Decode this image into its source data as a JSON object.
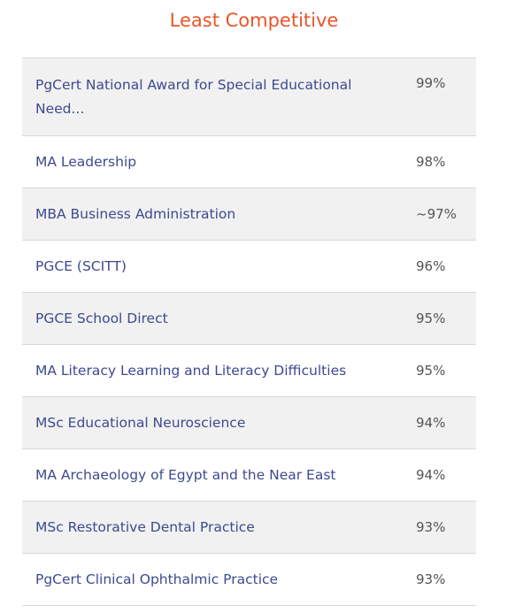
{
  "title": "Least Competitive",
  "rows": [
    {
      "course": "PgCert National Award for Special Educational Need...",
      "percent": "99%"
    },
    {
      "course": "MA Leadership",
      "percent": "98%"
    },
    {
      "course": "MBA Business Administration",
      "percent": "~97%"
    },
    {
      "course": "PGCE (SCITT)",
      "percent": "96%"
    },
    {
      "course": "PGCE School Direct",
      "percent": "95%"
    },
    {
      "course": "MA Literacy Learning and Literacy Difficulties",
      "percent": "95%"
    },
    {
      "course": "MSc Educational Neuroscience",
      "percent": "94%"
    },
    {
      "course": "MA Archaeology of Egypt and the Near East",
      "percent": "94%"
    },
    {
      "course": "MSc Restorative Dental Practice",
      "percent": "93%"
    },
    {
      "course": "PgCert Clinical Ophthalmic Practice",
      "percent": "93%"
    }
  ],
  "colors": {
    "title": "#e8562a",
    "link": "#3d4a8f",
    "shaded_row": "#f1f1f1",
    "border": "#d8d8d8"
  }
}
